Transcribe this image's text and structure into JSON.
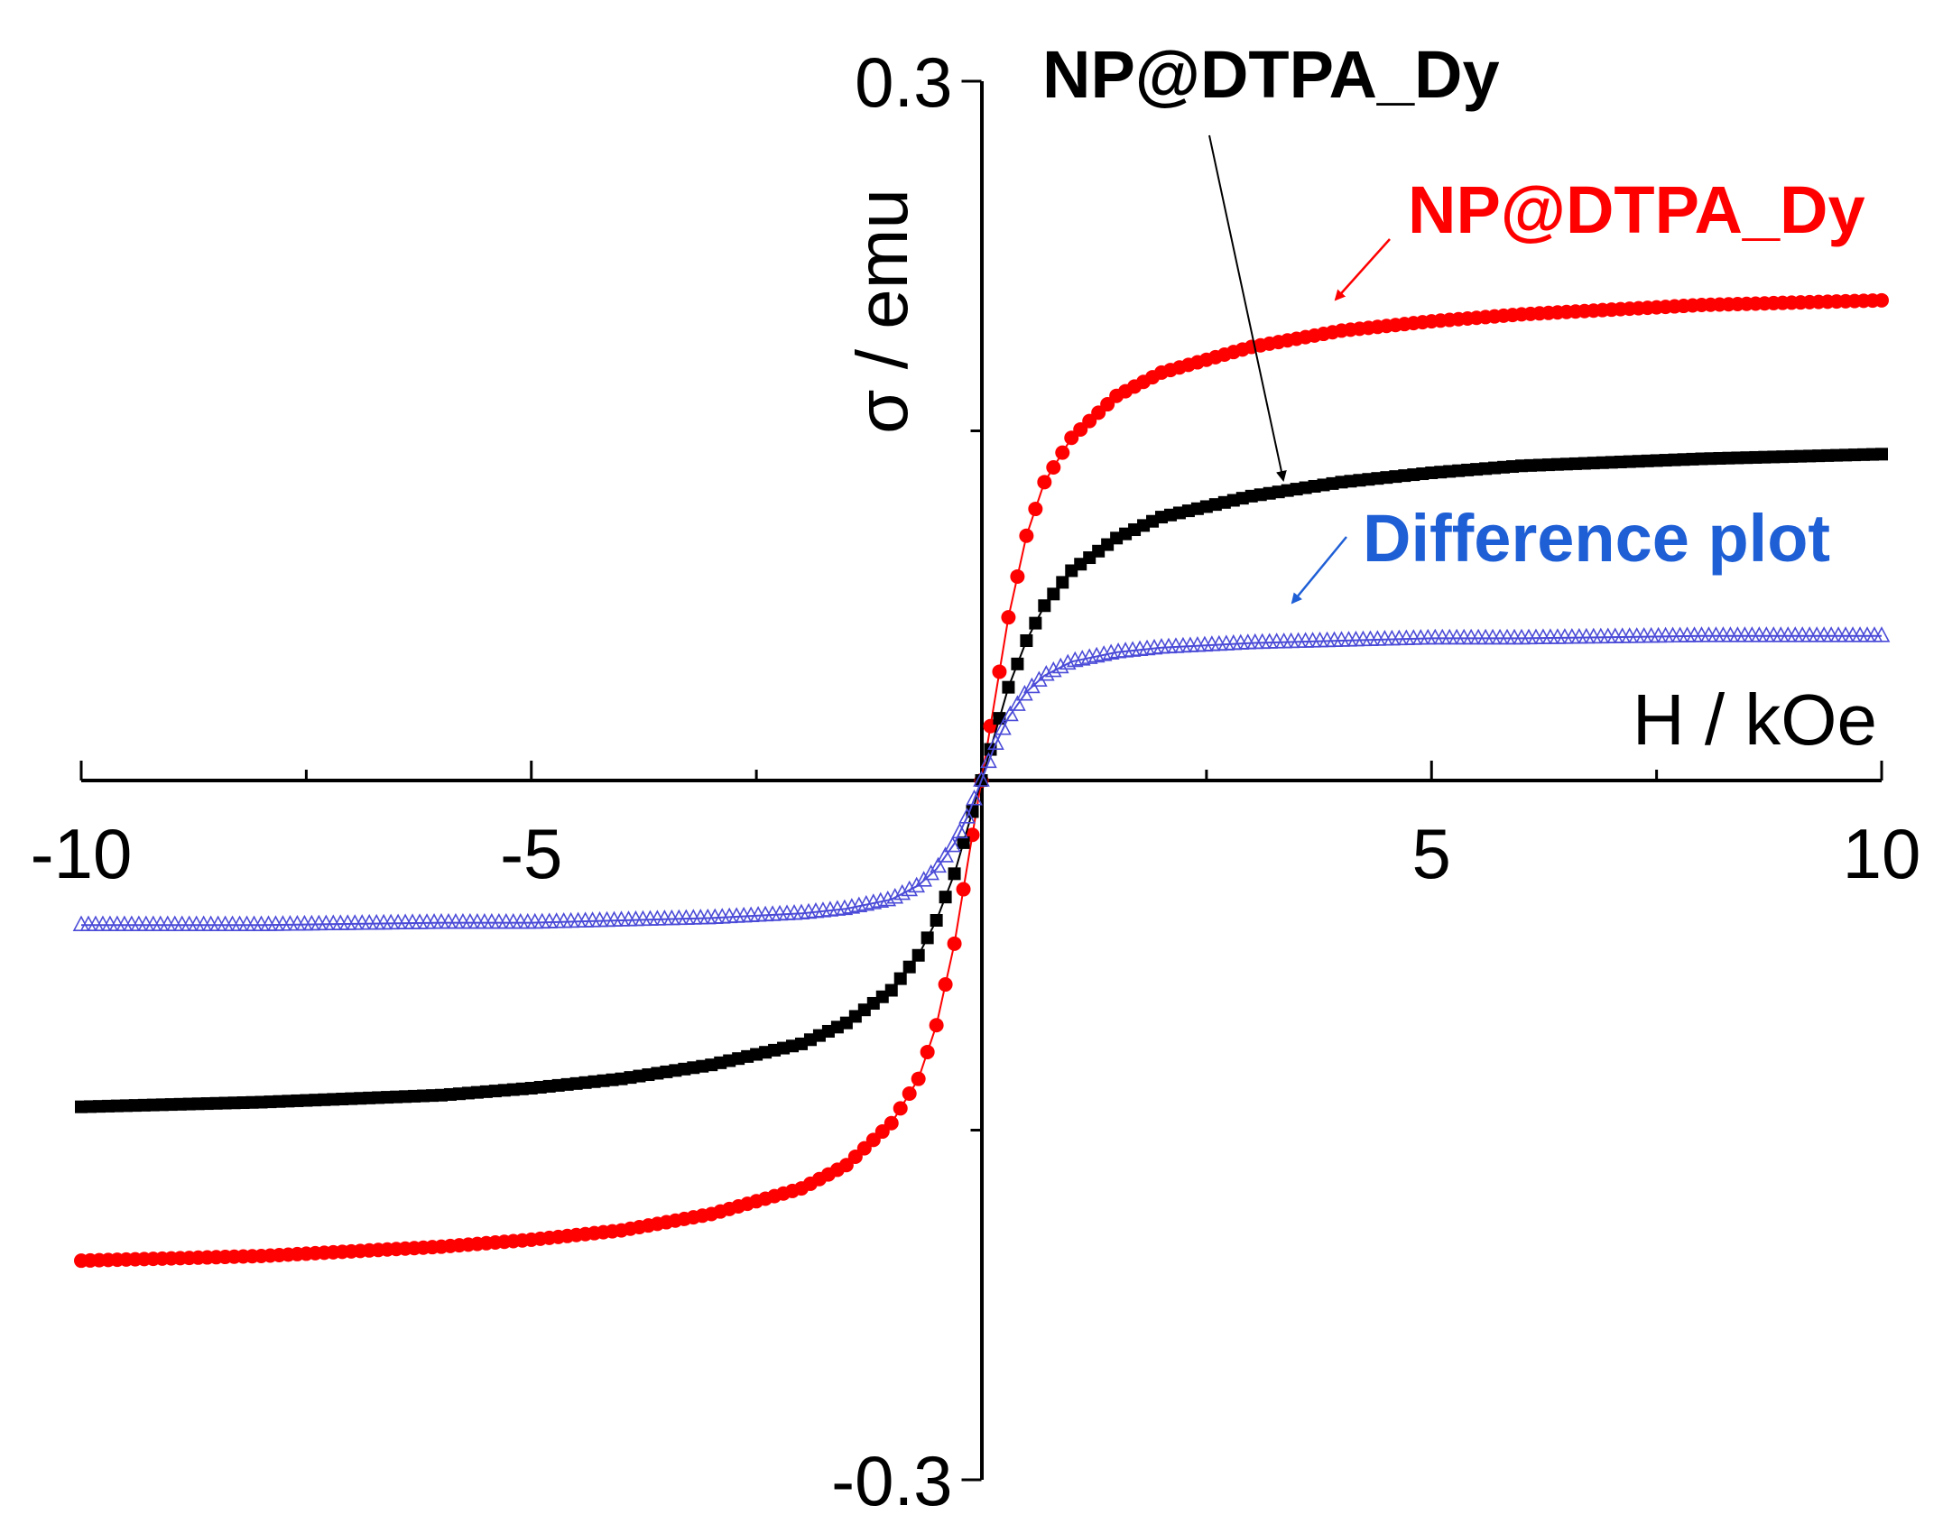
{
  "chart_data": {
    "type": "scatter",
    "title": "",
    "xlabel": "H / kOe",
    "ylabel": "σ / emu",
    "xlim": [
      -10,
      10
    ],
    "ylim": [
      -0.3,
      0.3
    ],
    "x_ticks": [
      -10,
      -5,
      5,
      10
    ],
    "x_tick_labels": [
      "-10",
      "-5",
      "5",
      "10"
    ],
    "y_ticks": [
      0.3,
      -0.3
    ],
    "y_tick_labels": [
      "0.3",
      "-0.3"
    ],
    "x_minor_ticks": [
      -7.5,
      -2.5,
      2.5,
      7.5
    ],
    "y_minor_ticks": [
      0.15,
      -0.15
    ],
    "grid": false,
    "series": [
      {
        "name": "NP@DTPA_Dy",
        "color": "#ff0000",
        "marker": "circle",
        "x": [
          -10,
          -8,
          -6,
          -5,
          -4,
          -3,
          -2,
          -1.5,
          -1,
          -0.7,
          -0.5,
          -0.3,
          -0.15,
          0,
          0.15,
          0.3,
          0.5,
          0.7,
          1,
          1.5,
          2,
          3,
          4,
          5,
          6,
          8,
          10
        ],
        "values": [
          -0.206,
          -0.204,
          -0.2,
          -0.197,
          -0.193,
          -0.186,
          -0.175,
          -0.165,
          -0.147,
          -0.128,
          -0.105,
          -0.07,
          -0.035,
          0.0,
          0.035,
          0.07,
          0.105,
          0.128,
          0.147,
          0.165,
          0.175,
          0.186,
          0.193,
          0.197,
          0.2,
          0.204,
          0.206
        ]
      },
      {
        "name": "NP@DTPA_Dy",
        "color": "#000000",
        "marker": "square",
        "x": [
          -10,
          -8,
          -6,
          -5,
          -4,
          -3,
          -2,
          -1.5,
          -1,
          -0.7,
          -0.5,
          -0.3,
          -0.15,
          0,
          0.15,
          0.3,
          0.5,
          0.7,
          1,
          1.5,
          2,
          3,
          4,
          5,
          6,
          8,
          10
        ],
        "values": [
          -0.14,
          -0.138,
          -0.135,
          -0.132,
          -0.128,
          -0.122,
          -0.113,
          -0.104,
          -0.09,
          -0.075,
          -0.06,
          -0.04,
          -0.02,
          0.0,
          0.02,
          0.04,
          0.06,
          0.075,
          0.09,
          0.104,
          0.113,
          0.122,
          0.128,
          0.132,
          0.135,
          0.138,
          0.14
        ]
      },
      {
        "name": "Difference plot",
        "color": "#4b4bd8",
        "marker": "triangle",
        "x": [
          -10,
          -8,
          -6,
          -5,
          -4,
          -3,
          -2,
          -1.5,
          -1,
          -0.7,
          -0.5,
          -0.3,
          -0.15,
          0,
          0.15,
          0.3,
          0.5,
          0.7,
          1,
          1.5,
          2,
          3,
          4,
          5,
          6,
          8,
          10
        ],
        "values": [
          -0.062,
          -0.062,
          -0.061,
          -0.061,
          -0.06,
          -0.059,
          -0.057,
          -0.055,
          -0.051,
          -0.045,
          -0.038,
          -0.027,
          -0.015,
          0.0,
          0.015,
          0.027,
          0.038,
          0.045,
          0.051,
          0.055,
          0.057,
          0.059,
          0.06,
          0.061,
          0.061,
          0.062,
          0.062
        ]
      }
    ],
    "annotations": [
      {
        "text": "NP@DTPA_Dy",
        "color": "#000000",
        "points_to_series": 1
      },
      {
        "text": "NP@DTPA_Dy",
        "color": "#ff0000",
        "points_to_series": 0
      },
      {
        "text": "Difference plot",
        "color": "#1f5fd6",
        "points_to_series": 2
      }
    ]
  }
}
